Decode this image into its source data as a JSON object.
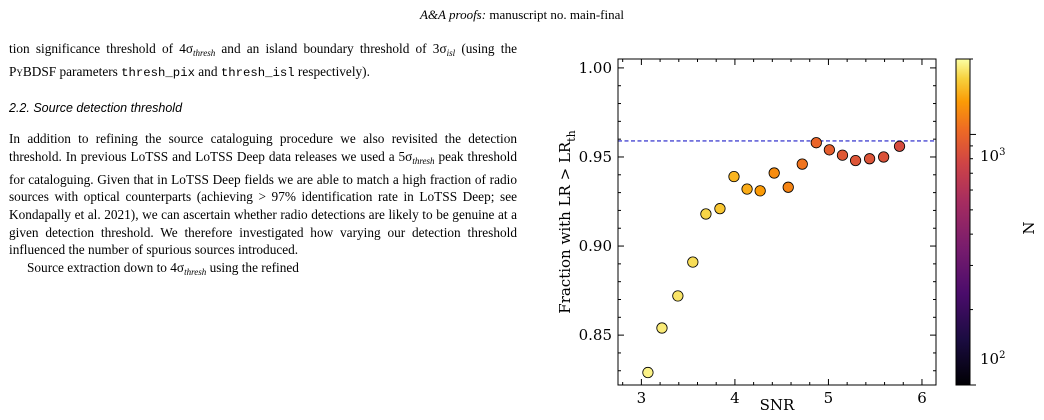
{
  "header": {
    "journal": "A&A proofs:",
    "manuscript": " manuscript no. main-final"
  },
  "text": {
    "para1": {
      "a": "tion significance threshold of 4σ",
      "a_sub": "thresh",
      "b": " and an island boundary threshold of 3σ",
      "b_sub": "isl",
      "c": " (using the P",
      "pybdsf": "yBDSF",
      "d": " parameters ",
      "code1": "thresh_pix",
      "e": " and ",
      "code2": "thresh_isl",
      "f": " respectively)."
    },
    "section_heading": "2.2. Source detection threshold",
    "para2": {
      "a": "In addition to refining the source cataloguing procedure we also revisited the detection threshold. In previous LoTSS and LoTSS Deep data releases we used a 5σ",
      "a_sub": "thresh",
      "b": " peak threshold for cataloguing. Given that in LoTSS Deep fields we are able to match a high fraction of radio sources with optical counterparts (achieving > 97% identification rate in LoTSS Deep; see Kondapally et al. 2021), we can ascertain whether radio detections are likely to be genuine at a given detection threshold. We therefore investigated how varying our detection threshold influenced the number of spurious sources introduced."
    },
    "para3": {
      "a": "Source extraction down to 4σ",
      "a_sub": "thresh",
      "b": " using the refined"
    }
  },
  "chart_data": {
    "type": "scatter",
    "xlabel": "SNR",
    "ylabel": "Fraction with LR > LR",
    "ylabel_sub": "th",
    "xlim": [
      2.75,
      6.15
    ],
    "ylim": [
      0.822,
      1.005
    ],
    "xticks": [
      3,
      4,
      5,
      6
    ],
    "xtick_labels": [
      "3",
      "4",
      "5",
      "6"
    ],
    "yticks": [
      0.85,
      0.9,
      0.95,
      1.0
    ],
    "ytick_labels": [
      "0.85",
      "0.90",
      "0.95",
      "1.00"
    ],
    "reference_line": {
      "y": 0.959,
      "color": "#1f1fc8",
      "style": "dashed"
    },
    "colorbar": {
      "label": "N",
      "scale": "log",
      "range": [
        100,
        2000
      ],
      "tick_labels": [
        "10",
        "10"
      ],
      "tick_exponents": [
        "2",
        "3"
      ],
      "colormap": "inferno"
    },
    "points": [
      {
        "x": 3.07,
        "y": 0.829,
        "n": 1900
      },
      {
        "x": 3.22,
        "y": 0.854,
        "n": 1850
      },
      {
        "x": 3.39,
        "y": 0.872,
        "n": 1800
      },
      {
        "x": 3.55,
        "y": 0.891,
        "n": 1750
      },
      {
        "x": 3.69,
        "y": 0.918,
        "n": 1700
      },
      {
        "x": 3.84,
        "y": 0.921,
        "n": 1600
      },
      {
        "x": 3.99,
        "y": 0.939,
        "n": 1500
      },
      {
        "x": 4.13,
        "y": 0.932,
        "n": 1450
      },
      {
        "x": 4.27,
        "y": 0.931,
        "n": 1350
      },
      {
        "x": 4.42,
        "y": 0.941,
        "n": 1250
      },
      {
        "x": 4.57,
        "y": 0.933,
        "n": 1200
      },
      {
        "x": 4.72,
        "y": 0.946,
        "n": 1100
      },
      {
        "x": 4.87,
        "y": 0.958,
        "n": 1000
      },
      {
        "x": 5.01,
        "y": 0.954,
        "n": 950
      },
      {
        "x": 5.15,
        "y": 0.951,
        "n": 900
      },
      {
        "x": 5.29,
        "y": 0.948,
        "n": 880
      },
      {
        "x": 5.44,
        "y": 0.949,
        "n": 870
      },
      {
        "x": 5.59,
        "y": 0.95,
        "n": 860
      },
      {
        "x": 5.76,
        "y": 0.956,
        "n": 820
      }
    ]
  }
}
